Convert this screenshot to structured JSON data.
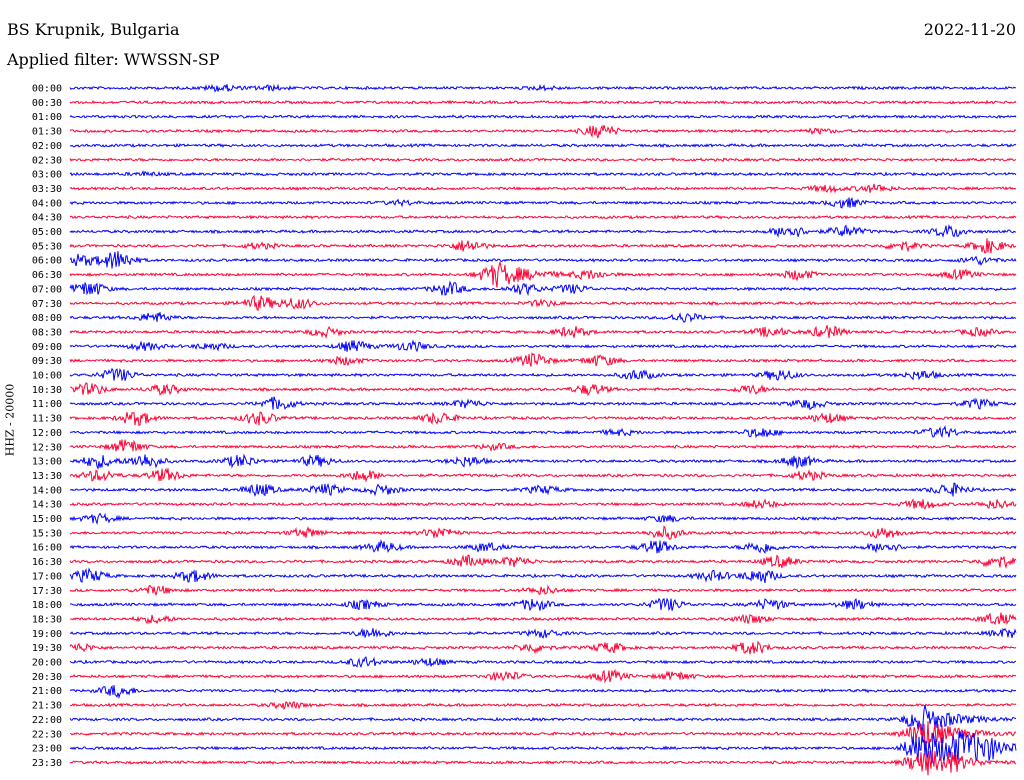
{
  "header": {
    "station": "BS Krupnik, Bulgaria",
    "filter": "Applied filter: WWSSN-SP",
    "date": "2022-11-20",
    "channel": "HHZ - 20000"
  },
  "colors": {
    "even_hour_trace": "#0000ff",
    "odd_half_trace": "#ff0033"
  },
  "chart_data": {
    "type": "line",
    "title": "BS Krupnik, Bulgaria",
    "subtitle": "Applied filter: WWSSN-SP",
    "ylabel": "HHZ - 20000",
    "rows": [
      {
        "label": "00:00",
        "events": [
          {
            "x": 0.16,
            "a": 0.6
          },
          {
            "x": 0.21,
            "a": 0.4
          },
          {
            "x": 0.5,
            "a": 0.3
          }
        ]
      },
      {
        "label": "00:30",
        "events": []
      },
      {
        "label": "01:00",
        "events": []
      },
      {
        "label": "01:30",
        "events": [
          {
            "x": 0.56,
            "a": 1.2
          },
          {
            "x": 0.79,
            "a": 0.4
          }
        ]
      },
      {
        "label": "02:00",
        "events": []
      },
      {
        "label": "02:30",
        "events": []
      },
      {
        "label": "03:00",
        "events": [
          {
            "x": 0.08,
            "a": 0.3
          }
        ]
      },
      {
        "label": "03:30",
        "events": [
          {
            "x": 0.8,
            "a": 0.6
          },
          {
            "x": 0.85,
            "a": 0.7
          }
        ]
      },
      {
        "label": "04:00",
        "events": [
          {
            "x": 0.35,
            "a": 0.4
          },
          {
            "x": 0.82,
            "a": 0.9
          }
        ]
      },
      {
        "label": "04:30",
        "events": []
      },
      {
        "label": "05:00",
        "events": [
          {
            "x": 0.76,
            "a": 1.2
          },
          {
            "x": 0.82,
            "a": 1.0
          },
          {
            "x": 0.93,
            "a": 1.1
          }
        ]
      },
      {
        "label": "05:30",
        "events": [
          {
            "x": 0.2,
            "a": 0.5
          },
          {
            "x": 0.42,
            "a": 1.1
          },
          {
            "x": 0.88,
            "a": 0.8
          },
          {
            "x": 0.97,
            "a": 1.3
          }
        ]
      },
      {
        "label": "06:00",
        "events": [
          {
            "x": 0.01,
            "a": 1.0
          },
          {
            "x": 0.05,
            "a": 1.8
          },
          {
            "x": 0.96,
            "a": 0.7
          }
        ]
      },
      {
        "label": "06:30",
        "events": [
          {
            "x": 0.45,
            "a": 2.0
          },
          {
            "x": 0.55,
            "a": 0.7
          },
          {
            "x": 0.77,
            "a": 0.9
          },
          {
            "x": 0.94,
            "a": 0.8
          }
        ]
      },
      {
        "label": "07:00",
        "events": [
          {
            "x": 0.02,
            "a": 1.4
          },
          {
            "x": 0.4,
            "a": 1.2
          },
          {
            "x": 0.48,
            "a": 1.0
          },
          {
            "x": 0.53,
            "a": 0.8
          }
        ]
      },
      {
        "label": "07:30",
        "events": [
          {
            "x": 0.2,
            "a": 1.3
          },
          {
            "x": 0.24,
            "a": 1.0
          },
          {
            "x": 0.5,
            "a": 0.5
          }
        ]
      },
      {
        "label": "08:00",
        "events": [
          {
            "x": 0.09,
            "a": 0.9
          },
          {
            "x": 0.65,
            "a": 0.8
          }
        ]
      },
      {
        "label": "08:30",
        "events": [
          {
            "x": 0.27,
            "a": 0.8
          },
          {
            "x": 0.53,
            "a": 1.0
          },
          {
            "x": 0.74,
            "a": 0.9
          },
          {
            "x": 0.8,
            "a": 1.1
          },
          {
            "x": 0.96,
            "a": 0.7
          }
        ]
      },
      {
        "label": "09:00",
        "events": [
          {
            "x": 0.08,
            "a": 0.7
          },
          {
            "x": 0.15,
            "a": 0.6
          },
          {
            "x": 0.36,
            "a": 0.9
          },
          {
            "x": 0.3,
            "a": 1.0
          }
        ]
      },
      {
        "label": "09:30",
        "events": [
          {
            "x": 0.49,
            "a": 1.3
          },
          {
            "x": 0.56,
            "a": 1.0
          },
          {
            "x": 0.29,
            "a": 0.7
          }
        ]
      },
      {
        "label": "10:00",
        "events": [
          {
            "x": 0.05,
            "a": 1.2
          },
          {
            "x": 0.6,
            "a": 0.9
          },
          {
            "x": 0.75,
            "a": 1.0
          },
          {
            "x": 0.9,
            "a": 0.8
          }
        ]
      },
      {
        "label": "10:30",
        "events": [
          {
            "x": 0.02,
            "a": 1.1
          },
          {
            "x": 0.1,
            "a": 0.9
          },
          {
            "x": 0.55,
            "a": 1.0
          },
          {
            "x": 0.72,
            "a": 0.8
          }
        ]
      },
      {
        "label": "11:00",
        "events": [
          {
            "x": 0.22,
            "a": 1.2
          },
          {
            "x": 0.42,
            "a": 0.7
          },
          {
            "x": 0.78,
            "a": 0.9
          },
          {
            "x": 0.96,
            "a": 0.8
          }
        ]
      },
      {
        "label": "11:30",
        "events": [
          {
            "x": 0.07,
            "a": 1.3
          },
          {
            "x": 0.2,
            "a": 1.2
          },
          {
            "x": 0.39,
            "a": 1.1
          },
          {
            "x": 0.8,
            "a": 0.9
          }
        ]
      },
      {
        "label": "12:00",
        "events": [
          {
            "x": 0.73,
            "a": 0.9
          },
          {
            "x": 0.92,
            "a": 1.0
          },
          {
            "x": 0.58,
            "a": 0.5
          }
        ]
      },
      {
        "label": "12:30",
        "events": [
          {
            "x": 0.06,
            "a": 1.3
          },
          {
            "x": 0.45,
            "a": 0.5
          }
        ]
      },
      {
        "label": "13:00",
        "events": [
          {
            "x": 0.03,
            "a": 1.2
          },
          {
            "x": 0.08,
            "a": 1.4
          },
          {
            "x": 0.18,
            "a": 1.1
          },
          {
            "x": 0.26,
            "a": 1.0
          },
          {
            "x": 0.42,
            "a": 0.9
          },
          {
            "x": 0.77,
            "a": 1.1
          }
        ]
      },
      {
        "label": "13:30",
        "events": [
          {
            "x": 0.03,
            "a": 1.0
          },
          {
            "x": 0.1,
            "a": 1.2
          },
          {
            "x": 0.31,
            "a": 1.0
          },
          {
            "x": 0.78,
            "a": 0.8
          }
        ]
      },
      {
        "label": "14:00",
        "events": [
          {
            "x": 0.2,
            "a": 1.1
          },
          {
            "x": 0.27,
            "a": 1.0
          },
          {
            "x": 0.33,
            "a": 0.9
          },
          {
            "x": 0.5,
            "a": 0.7
          },
          {
            "x": 0.93,
            "a": 1.2
          }
        ]
      },
      {
        "label": "14:30",
        "events": [
          {
            "x": 0.73,
            "a": 0.7
          },
          {
            "x": 0.9,
            "a": 0.9
          },
          {
            "x": 0.98,
            "a": 0.8
          }
        ]
      },
      {
        "label": "15:00",
        "events": [
          {
            "x": 0.03,
            "a": 0.8
          },
          {
            "x": 0.63,
            "a": 0.6
          }
        ]
      },
      {
        "label": "15:30",
        "events": [
          {
            "x": 0.25,
            "a": 0.8
          },
          {
            "x": 0.39,
            "a": 1.0
          },
          {
            "x": 0.63,
            "a": 1.1
          },
          {
            "x": 0.86,
            "a": 1.0
          }
        ]
      },
      {
        "label": "16:00",
        "events": [
          {
            "x": 0.33,
            "a": 1.0
          },
          {
            "x": 0.44,
            "a": 0.8
          },
          {
            "x": 0.62,
            "a": 1.2
          },
          {
            "x": 0.73,
            "a": 1.1
          },
          {
            "x": 0.86,
            "a": 0.9
          }
        ]
      },
      {
        "label": "16:30",
        "events": [
          {
            "x": 0.42,
            "a": 1.0
          },
          {
            "x": 0.47,
            "a": 0.9
          },
          {
            "x": 0.75,
            "a": 1.1
          },
          {
            "x": 0.98,
            "a": 1.2
          }
        ]
      },
      {
        "label": "17:00",
        "events": [
          {
            "x": 0.02,
            "a": 1.2
          },
          {
            "x": 0.13,
            "a": 1.1
          },
          {
            "x": 0.68,
            "a": 0.9
          },
          {
            "x": 0.73,
            "a": 1.3
          }
        ]
      },
      {
        "label": "17:30",
        "events": [
          {
            "x": 0.09,
            "a": 0.8
          },
          {
            "x": 0.5,
            "a": 0.7
          }
        ]
      },
      {
        "label": "18:00",
        "events": [
          {
            "x": 0.31,
            "a": 0.8
          },
          {
            "x": 0.49,
            "a": 1.1
          },
          {
            "x": 0.63,
            "a": 1.2
          },
          {
            "x": 0.74,
            "a": 1.0
          },
          {
            "x": 0.83,
            "a": 0.9
          }
        ]
      },
      {
        "label": "18:30",
        "events": [
          {
            "x": 0.09,
            "a": 0.7
          },
          {
            "x": 0.72,
            "a": 0.8
          },
          {
            "x": 0.98,
            "a": 1.1
          }
        ]
      },
      {
        "label": "19:00",
        "events": [
          {
            "x": 0.32,
            "a": 0.9
          },
          {
            "x": 0.5,
            "a": 0.7
          },
          {
            "x": 0.99,
            "a": 0.8
          }
        ]
      },
      {
        "label": "19:30",
        "events": [
          {
            "x": 0.01,
            "a": 0.7
          },
          {
            "x": 0.49,
            "a": 0.8
          },
          {
            "x": 0.57,
            "a": 0.9
          },
          {
            "x": 0.72,
            "a": 1.2
          }
        ]
      },
      {
        "label": "20:00",
        "events": [
          {
            "x": 0.31,
            "a": 0.9
          },
          {
            "x": 0.38,
            "a": 0.7
          }
        ]
      },
      {
        "label": "20:30",
        "events": [
          {
            "x": 0.46,
            "a": 0.9
          },
          {
            "x": 0.57,
            "a": 1.0
          },
          {
            "x": 0.64,
            "a": 0.8
          }
        ]
      },
      {
        "label": "21:00",
        "events": [
          {
            "x": 0.05,
            "a": 1.1
          }
        ]
      },
      {
        "label": "21:30",
        "events": [
          {
            "x": 0.23,
            "a": 0.6
          }
        ]
      },
      {
        "label": "22:00",
        "events": [
          {
            "x": 0.9,
            "a": 2.2
          }
        ]
      },
      {
        "label": "22:30",
        "events": [
          {
            "x": 0.9,
            "a": 2.5
          }
        ]
      },
      {
        "label": "23:00",
        "events": [
          {
            "x": 0.9,
            "a": 3.0
          },
          {
            "x": 0.94,
            "a": 2.0
          },
          {
            "x": 0.97,
            "a": 1.0
          }
        ]
      },
      {
        "label": "23:30",
        "events": [
          {
            "x": 0.9,
            "a": 2.0
          },
          {
            "x": 0.93,
            "a": 1.0
          }
        ]
      }
    ]
  }
}
